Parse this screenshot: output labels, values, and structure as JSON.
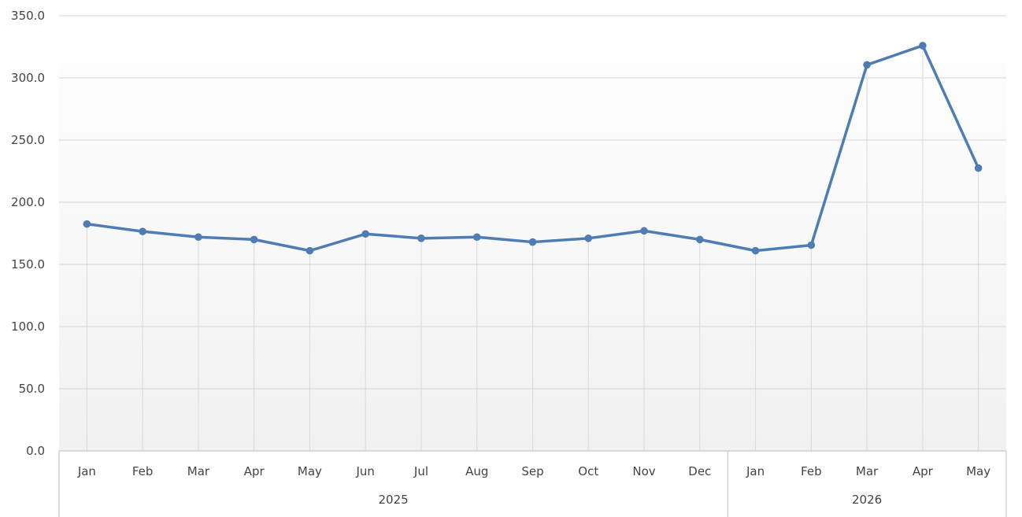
{
  "chart_data": {
    "type": "line",
    "title": "",
    "xlabel": "",
    "ylabel": "",
    "ylim": [
      0,
      350
    ],
    "y_ticks": [
      "0.0",
      "50.0",
      "100.0",
      "150.0",
      "200.0",
      "250.0",
      "300.0",
      "350.0"
    ],
    "grid": true,
    "legend": "none",
    "year_groups": [
      {
        "label": "2025",
        "count": 12
      },
      {
        "label": "2026",
        "count": 5
      }
    ],
    "categories": [
      "Jan",
      "Feb",
      "Mar",
      "Apr",
      "May",
      "Jun",
      "Jul",
      "Aug",
      "Sep",
      "Oct",
      "Nov",
      "Dec",
      "Jan",
      "Feb",
      "Mar",
      "Apr",
      "May"
    ],
    "series": [
      {
        "color": "#4e7db3",
        "values": [
          182.5,
          176.5,
          172,
          170,
          161,
          174.5,
          171,
          172,
          168,
          171,
          177,
          170,
          161,
          165.5,
          310.5,
          326,
          227.5
        ]
      }
    ]
  }
}
